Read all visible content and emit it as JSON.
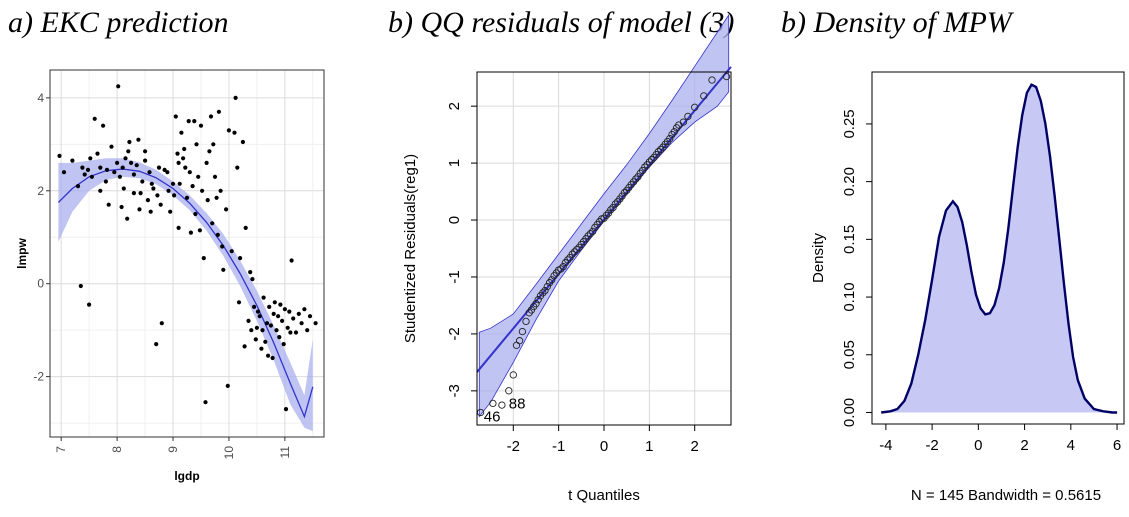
{
  "titles": {
    "a": "a) EKC prediction",
    "b": "b) QQ residuals of model (3)",
    "c": "b) Density of MPW"
  },
  "colors": {
    "band": "#aab0ee",
    "line": "#3333cc",
    "dark": "#000066"
  },
  "chart_data": [
    {
      "type": "scatter",
      "title": "a) EKC prediction",
      "xlabel": "lgdp",
      "ylabel": "lmpw",
      "xlim": [
        6.8,
        11.7
      ],
      "ylim": [
        -3.3,
        4.6
      ],
      "xticks": [
        7,
        8,
        9,
        10,
        11
      ],
      "yticks": [
        -2,
        0,
        2,
        4
      ],
      "grid": true,
      "fit": {
        "x": [
          6.95,
          7.2,
          7.5,
          7.8,
          8.1,
          8.4,
          8.7,
          9.0,
          9.3,
          9.6,
          9.9,
          10.2,
          10.5,
          10.8,
          11.1,
          11.35,
          11.5
        ],
        "y": [
          1.75,
          2.05,
          2.3,
          2.43,
          2.47,
          2.42,
          2.28,
          2.05,
          1.73,
          1.32,
          0.82,
          0.22,
          -0.47,
          -1.27,
          -2.15,
          -2.86,
          -2.22
        ]
      },
      "band_lower": [
        0.9,
        1.55,
        2.0,
        2.23,
        2.3,
        2.27,
        2.14,
        1.9,
        1.58,
        1.14,
        0.6,
        -0.05,
        -0.8,
        -1.65,
        -2.6,
        -3.1,
        -3.17
      ],
      "band_upper": [
        2.6,
        2.6,
        2.65,
        2.7,
        2.7,
        2.61,
        2.45,
        2.2,
        1.9,
        1.52,
        1.07,
        0.5,
        -0.15,
        -0.9,
        -1.7,
        -2.4,
        -1.2
      ],
      "points": {
        "x": [
          6.97,
          7.05,
          7.2,
          7.3,
          7.35,
          7.38,
          7.42,
          7.48,
          7.5,
          7.52,
          7.55,
          7.6,
          7.65,
          7.7,
          7.7,
          7.75,
          7.8,
          7.82,
          7.85,
          7.9,
          7.95,
          8.0,
          8.02,
          8.05,
          8.08,
          8.1,
          8.12,
          8.15,
          8.18,
          8.2,
          8.22,
          8.25,
          8.3,
          8.3,
          8.35,
          8.38,
          8.4,
          8.42,
          8.45,
          8.5,
          8.5,
          8.55,
          8.58,
          8.6,
          8.62,
          8.65,
          8.7,
          8.72,
          8.75,
          8.78,
          8.8,
          8.85,
          8.9,
          8.92,
          8.95,
          9.0,
          9.02,
          9.05,
          9.08,
          9.1,
          9.1,
          9.12,
          9.15,
          9.18,
          9.2,
          9.22,
          9.25,
          9.28,
          9.3,
          9.32,
          9.35,
          9.38,
          9.4,
          9.42,
          9.45,
          9.48,
          9.5,
          9.52,
          9.55,
          9.58,
          9.6,
          9.62,
          9.65,
          9.68,
          9.7,
          9.72,
          9.75,
          9.78,
          9.8,
          9.82,
          9.85,
          9.88,
          9.9,
          9.95,
          9.98,
          10.0,
          10.05,
          10.1,
          10.12,
          10.15,
          10.18,
          10.2,
          10.25,
          10.28,
          10.3,
          10.35,
          10.38,
          10.4,
          10.42,
          10.45,
          10.48,
          10.5,
          10.52,
          10.55,
          10.58,
          10.6,
          10.62,
          10.65,
          10.68,
          10.7,
          10.72,
          10.75,
          10.78,
          10.8,
          10.82,
          10.85,
          10.88,
          10.9,
          10.92,
          10.95,
          10.98,
          11.0,
          11.02,
          11.05,
          11.08,
          11.1,
          11.12,
          11.15,
          11.2,
          11.25,
          11.3,
          11.35,
          11.4,
          11.45,
          11.55
        ],
        "y": [
          2.75,
          2.4,
          2.65,
          2.1,
          -0.05,
          2.5,
          2.35,
          2.45,
          -0.45,
          2.7,
          2.3,
          3.55,
          2.8,
          2.5,
          2.0,
          3.4,
          2.2,
          2.45,
          1.7,
          2.95,
          2.4,
          2.6,
          4.25,
          2.3,
          1.65,
          2.5,
          2.05,
          2.7,
          1.4,
          2.85,
          3.05,
          2.6,
          2.35,
          1.95,
          2.55,
          3.1,
          1.6,
          1.95,
          2.2,
          2.65,
          2.85,
          1.8,
          2.4,
          1.55,
          2.15,
          2.05,
          -1.3,
          1.9,
          2.5,
          1.7,
          -0.85,
          2.45,
          2.4,
          2.0,
          1.55,
          2.15,
          1.9,
          3.6,
          2.8,
          1.2,
          2.6,
          2.15,
          3.25,
          2.7,
          2.9,
          2.5,
          1.85,
          3.5,
          2.4,
          1.1,
          2.1,
          3.5,
          1.5,
          3.0,
          2.3,
          1.15,
          3.4,
          2.0,
          0.55,
          -2.55,
          2.6,
          1.8,
          2.85,
          3.6,
          1.3,
          3.0,
          2.3,
          1.85,
          1.05,
          3.7,
          2.0,
          0.8,
          0.3,
          1.6,
          -2.2,
          3.3,
          0.7,
          3.25,
          4.0,
          2.5,
          -0.4,
          0.55,
          3.05,
          -1.35,
          1.2,
          -0.8,
          0.25,
          -1.0,
          0.1,
          -0.5,
          -1.2,
          -0.95,
          -0.6,
          -0.7,
          -1.4,
          -1.0,
          -0.3,
          -1.25,
          -0.85,
          -1.55,
          -0.5,
          -0.9,
          -1.6,
          -0.65,
          -0.4,
          -1.0,
          -0.7,
          -1.15,
          -0.45,
          -0.8,
          -1.3,
          -0.55,
          -2.7,
          -0.95,
          -0.6,
          -1.05,
          0.5,
          -0.75,
          -1.05,
          -0.65,
          -0.85,
          -0.55,
          -1.0,
          -0.7,
          -0.85
        ]
      }
    },
    {
      "type": "scatter",
      "title": "b) QQ residuals of model (3)",
      "xlabel": "t Quantiles",
      "ylabel": "Studentized Residuals(reg1)",
      "xlim": [
        -2.8,
        2.8
      ],
      "ylim": [
        -3.6,
        2.6
      ],
      "xticks": [
        -2,
        -1,
        0,
        1,
        2
      ],
      "yticks": [
        -3,
        -2,
        -1,
        0,
        1,
        2
      ],
      "grid": true,
      "reference_line": {
        "x": [
          -2.8,
          2.8
        ],
        "y": [
          -2.67,
          2.69
        ]
      },
      "band_x": [
        -2.75,
        -2.5,
        -2.0,
        -1.5,
        -1.0,
        -0.5,
        0.0,
        0.5,
        1.0,
        1.5,
        2.0,
        2.5,
        2.75
      ],
      "band_lower": [
        -3.45,
        -3.2,
        -2.5,
        -1.75,
        -1.07,
        -0.53,
        -0.02,
        0.46,
        0.93,
        1.36,
        1.72,
        2.0,
        2.25
      ],
      "band_upper": [
        -1.97,
        -1.9,
        -1.65,
        -1.13,
        -0.6,
        -0.07,
        0.46,
        0.97,
        1.52,
        2.1,
        2.7,
        3.3,
        3.6
      ],
      "points": {
        "x": [
          -2.72,
          -2.45,
          -2.25,
          -2.1,
          -2.0,
          -1.93,
          -1.86,
          -1.8,
          -1.72,
          -1.65,
          -1.6,
          -1.55,
          -1.5,
          -1.45,
          -1.4,
          -1.35,
          -1.3,
          -1.25,
          -1.2,
          -1.15,
          -1.1,
          -1.05,
          -1.0,
          -0.95,
          -0.9,
          -0.85,
          -0.8,
          -0.75,
          -0.7,
          -0.65,
          -0.6,
          -0.55,
          -0.5,
          -0.45,
          -0.4,
          -0.35,
          -0.3,
          -0.25,
          -0.2,
          -0.15,
          -0.1,
          -0.05,
          0.0,
          0.05,
          0.1,
          0.15,
          0.2,
          0.25,
          0.3,
          0.35,
          0.4,
          0.45,
          0.5,
          0.55,
          0.6,
          0.65,
          0.7,
          0.75,
          0.8,
          0.85,
          0.9,
          0.95,
          1.0,
          1.05,
          1.1,
          1.15,
          1.2,
          1.25,
          1.3,
          1.35,
          1.4,
          1.45,
          1.5,
          1.55,
          1.6,
          1.65,
          1.75,
          1.85,
          2.0,
          2.2,
          2.38,
          2.7
        ],
        "y": [
          -3.38,
          -3.22,
          -3.25,
          -3.0,
          -2.72,
          -2.2,
          -2.12,
          -1.96,
          -1.78,
          -1.63,
          -1.58,
          -1.52,
          -1.47,
          -1.4,
          -1.33,
          -1.28,
          -1.24,
          -1.17,
          -1.1,
          -1.05,
          -0.98,
          -0.93,
          -0.88,
          -0.86,
          -0.82,
          -0.75,
          -0.7,
          -0.66,
          -0.6,
          -0.56,
          -0.52,
          -0.48,
          -0.43,
          -0.38,
          -0.33,
          -0.28,
          -0.24,
          -0.2,
          -0.13,
          -0.08,
          -0.03,
          0.02,
          0.03,
          0.08,
          0.12,
          0.18,
          0.22,
          0.28,
          0.32,
          0.37,
          0.42,
          0.48,
          0.52,
          0.57,
          0.62,
          0.67,
          0.72,
          0.76,
          0.82,
          0.87,
          0.93,
          0.97,
          1.02,
          1.06,
          1.1,
          1.15,
          1.2,
          1.24,
          1.28,
          1.33,
          1.38,
          1.43,
          1.5,
          1.55,
          1.62,
          1.67,
          1.72,
          1.82,
          1.98,
          2.18,
          2.46,
          2.52
        ]
      },
      "annotations": [
        {
          "text": "46",
          "x": -2.65,
          "y": -3.45
        },
        {
          "text": "88",
          "x": -2.1,
          "y": -3.22
        }
      ]
    },
    {
      "type": "area",
      "title": "b) Density of MPW",
      "xlabel": "N = 145   Bandwidth = 0.5615",
      "ylabel": "Density",
      "xlim": [
        -4.6,
        6.3
      ],
      "ylim": [
        -0.01,
        0.295
      ],
      "xticks": [
        -4,
        -2,
        0,
        2,
        4,
        6
      ],
      "yticks": [
        0.0,
        0.05,
        0.1,
        0.15,
        0.2,
        0.25
      ],
      "ytick_labels": [
        "0.00",
        "0.05",
        "0.10",
        "0.15",
        "0.20",
        "0.25"
      ],
      "grid": false,
      "x": [
        -4.2,
        -3.8,
        -3.5,
        -3.2,
        -2.9,
        -2.6,
        -2.3,
        -2.0,
        -1.7,
        -1.4,
        -1.1,
        -0.9,
        -0.7,
        -0.5,
        -0.3,
        -0.1,
        0.1,
        0.3,
        0.5,
        0.7,
        0.9,
        1.1,
        1.3,
        1.5,
        1.7,
        1.9,
        2.1,
        2.3,
        2.5,
        2.7,
        2.9,
        3.1,
        3.3,
        3.5,
        3.7,
        3.9,
        4.1,
        4.3,
        4.6,
        5.0,
        5.4,
        5.8,
        6.0
      ],
      "values": [
        0.0,
        0.001,
        0.003,
        0.01,
        0.025,
        0.05,
        0.08,
        0.115,
        0.152,
        0.175,
        0.183,
        0.178,
        0.165,
        0.145,
        0.122,
        0.102,
        0.09,
        0.085,
        0.086,
        0.093,
        0.108,
        0.13,
        0.16,
        0.195,
        0.23,
        0.258,
        0.277,
        0.284,
        0.282,
        0.27,
        0.25,
        0.222,
        0.188,
        0.15,
        0.112,
        0.077,
        0.048,
        0.028,
        0.012,
        0.003,
        0.001,
        0.0,
        0.0
      ]
    }
  ]
}
